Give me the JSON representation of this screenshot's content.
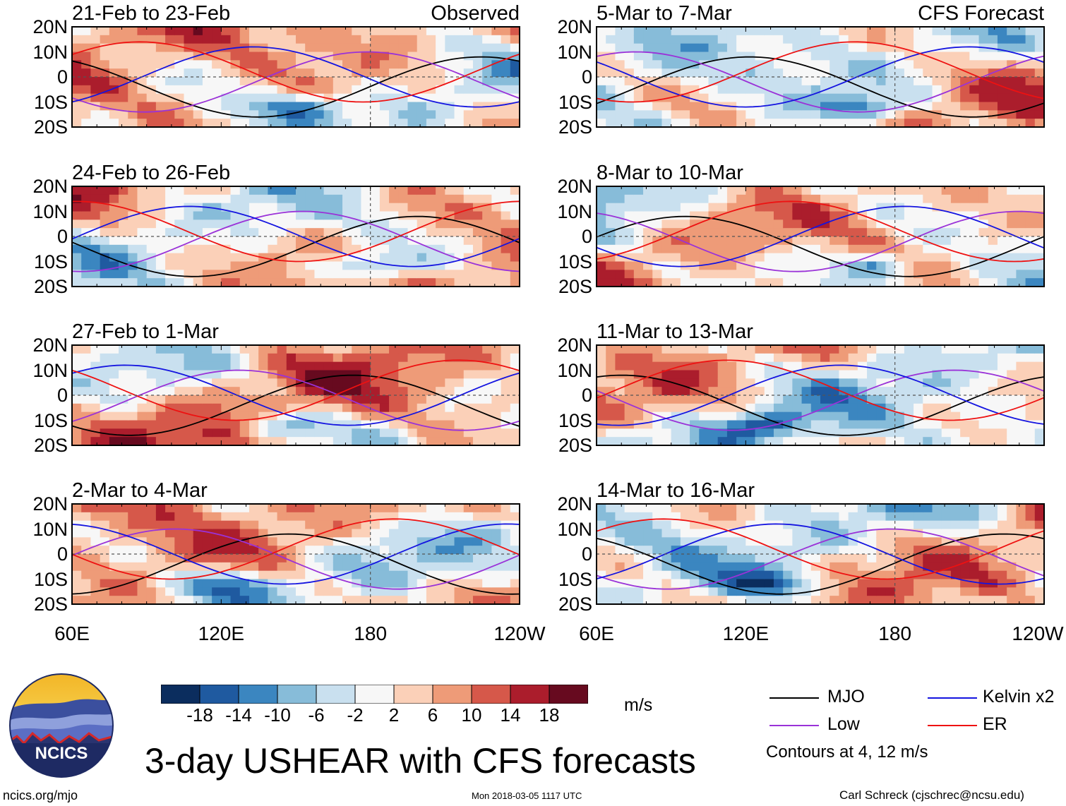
{
  "chart_data": {
    "type": "heatmap",
    "title": "3-day USHEAR with CFS forecasts",
    "units": "m/s",
    "column_labels": [
      "Observed",
      "CFS Forecast"
    ],
    "panels": [
      {
        "title": "21-Feb to 23-Feb",
        "column": "Observed"
      },
      {
        "title": "24-Feb to 26-Feb",
        "column": "Observed"
      },
      {
        "title": "27-Feb to 1-Mar",
        "column": "Observed"
      },
      {
        "title": "2-Mar to 4-Mar",
        "column": "Observed"
      },
      {
        "title": "5-Mar to 7-Mar",
        "column": "CFS Forecast"
      },
      {
        "title": "8-Mar to 10-Mar",
        "column": "CFS Forecast"
      },
      {
        "title": "11-Mar to 13-Mar",
        "column": "CFS Forecast"
      },
      {
        "title": "14-Mar to 16-Mar",
        "column": "CFS Forecast"
      }
    ],
    "x_axis": {
      "ticks": [
        "60E",
        "120E",
        "180",
        "120W"
      ],
      "range_lon": [
        60,
        240
      ]
    },
    "y_axis": {
      "ticks": [
        "20N",
        "10N",
        "0",
        "10S",
        "20S"
      ],
      "range_lat": [
        20,
        -20
      ]
    },
    "colorbar": {
      "levels": [
        -18,
        -14,
        -10,
        -6,
        -2,
        2,
        6,
        10,
        14,
        18
      ],
      "labels": [
        "-18",
        "-14",
        "-10",
        "-6",
        "-2",
        "2",
        "6",
        "10",
        "14",
        "18"
      ],
      "colors": [
        "#0b2d5e",
        "#1f5aa0",
        "#3b86c0",
        "#87bcd9",
        "#c9e0ef",
        "#f7f7f7",
        "#fbd0b8",
        "#ee9b78",
        "#d6584a",
        "#ab1d2c",
        "#670a1f"
      ]
    },
    "legend": [
      {
        "label": "MJO",
        "color": "#000000"
      },
      {
        "label": "Low",
        "color": "#9a32d8"
      },
      {
        "label": "Kelvin x2",
        "color": "#1414e0"
      },
      {
        "label": "ER",
        "color": "#ee1111"
      }
    ],
    "contour_note": "Contours at 4, 12 m/s"
  },
  "logo": {
    "text": "NCICS"
  },
  "footer": {
    "left": "ncics.org/mjo",
    "center": "Mon 2018-03-05 1117 UTC",
    "right": "Carl Schreck (cjschrec@ncsu.edu)"
  }
}
